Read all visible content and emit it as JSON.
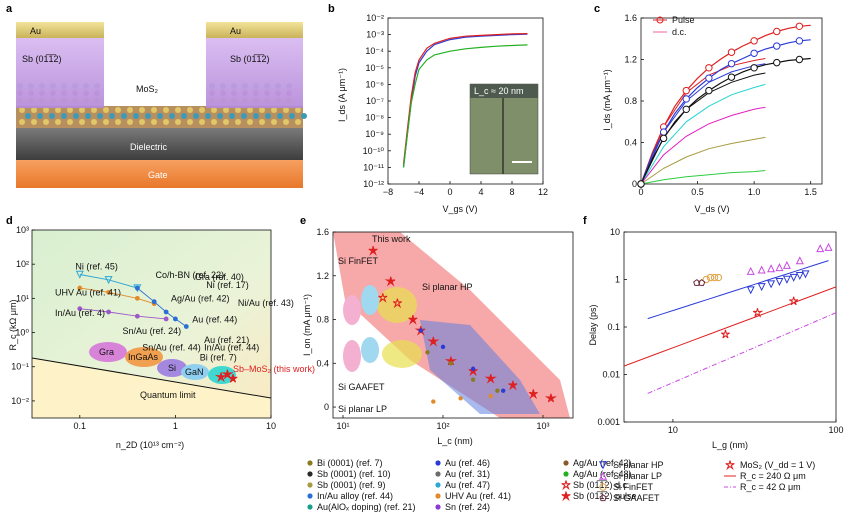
{
  "panel_letters": [
    "a",
    "b",
    "c",
    "d",
    "e",
    "f"
  ],
  "panel_a": {
    "labels": {
      "au_left": "Au",
      "au_right": "Au",
      "sb_left": "Sb (01̅1̅2)",
      "sb_right": "Sb (01̅1̅2)",
      "mos2": "MoS₂",
      "dielectric": "Dielectric",
      "gate": "Gate"
    },
    "colors": {
      "au": "#e7d37a",
      "sb": "#c9a6e6",
      "gate": "#f08a3c",
      "dielectric": "#5b5b5b"
    }
  },
  "chart_data": [
    {
      "id": "b",
      "type": "line",
      "xlabel": "V_gs (V)",
      "ylabel": "I_ds (A μm⁻¹)",
      "xlim": [
        -8,
        12
      ],
      "ylim_log10": [
        -12,
        -2
      ],
      "yscale": "log",
      "xticks": [
        "−8",
        "−4",
        "0",
        "4",
        "8",
        "12"
      ],
      "yticks": [
        "10⁻¹²",
        "10⁻¹¹",
        "10⁻¹⁰",
        "10⁻⁹",
        "10⁻⁸",
        "10⁻⁷",
        "10⁻⁶",
        "10⁻⁵",
        "10⁻⁴",
        "10⁻³",
        "10⁻²"
      ],
      "inset_label": "L_c ≈ 20 nm",
      "series": [
        {
          "color": "#2b3bd6",
          "x": [
            -6,
            -5.5,
            -5,
            -4.5,
            -4,
            -3,
            -2,
            0,
            2,
            4,
            6,
            8,
            10
          ],
          "y": [
            1e-11,
            1e-09,
            1e-07,
            3e-06,
            2e-05,
            0.0001,
            0.00025,
            0.0005,
            0.0007,
            0.0008,
            0.0009,
            0.001,
            0.00105
          ]
        },
        {
          "color": "#e02020",
          "x": [
            -6,
            -5.5,
            -5,
            -4.5,
            -4,
            -3,
            -2,
            0,
            2,
            4,
            6,
            8,
            10
          ],
          "y": [
            1.5e-11,
            2e-09,
            2e-07,
            5e-06,
            3e-05,
            0.00015,
            0.0003,
            0.0006,
            0.0008,
            0.0009,
            0.001,
            0.0011,
            0.00115
          ]
        },
        {
          "color": "#22b022",
          "x": [
            -6,
            -5.5,
            -5,
            -4.5,
            -4,
            -3,
            -2,
            0,
            2,
            4,
            6,
            8,
            10
          ],
          "y": [
            1e-11,
            1e-09,
            8e-08,
            1e-06,
            8e-06,
            3e-05,
            6e-05,
            0.0001,
            0.00014,
            0.00017,
            0.0002,
            0.00022,
            0.00024
          ]
        }
      ]
    },
    {
      "id": "c",
      "type": "line",
      "xlabel": "V_ds (V)",
      "ylabel": "I_ds (mA μm⁻¹)",
      "xlim": [
        0,
        1.6
      ],
      "ylim": [
        0,
        1.6
      ],
      "xticks": [
        "0",
        "0.5",
        "1.0",
        "1.5"
      ],
      "yticks": [
        "0",
        "0.4",
        "0.8",
        "1.2",
        "1.6"
      ],
      "legend": [
        {
          "name": "Pulse",
          "marker": "circle"
        },
        {
          "name": "d.c.",
          "marker": "line"
        }
      ],
      "legend_loc": "top-left",
      "pulse": [
        {
          "color": "#e02020",
          "x": [
            0,
            0.1,
            0.2,
            0.3,
            0.4,
            0.5,
            0.6,
            0.7,
            0.8,
            0.9,
            1.0,
            1.1,
            1.2,
            1.3,
            1.4,
            1.5
          ],
          "y": [
            0,
            0.3,
            0.55,
            0.75,
            0.9,
            1.02,
            1.12,
            1.2,
            1.27,
            1.33,
            1.38,
            1.43,
            1.47,
            1.5,
            1.52,
            1.53
          ]
        },
        {
          "color": "#2b3bd6",
          "x": [
            0,
            0.1,
            0.2,
            0.3,
            0.4,
            0.5,
            0.6,
            0.7,
            0.8,
            0.9,
            1.0,
            1.1,
            1.2,
            1.3,
            1.4,
            1.5
          ],
          "y": [
            0,
            0.28,
            0.5,
            0.68,
            0.82,
            0.93,
            1.02,
            1.1,
            1.16,
            1.21,
            1.26,
            1.3,
            1.33,
            1.36,
            1.38,
            1.39
          ]
        },
        {
          "color": "#111111",
          "x": [
            0,
            0.1,
            0.2,
            0.3,
            0.4,
            0.5,
            0.6,
            0.7,
            0.8,
            0.9,
            1.0,
            1.1,
            1.2,
            1.3,
            1.4,
            1.5
          ],
          "y": [
            0,
            0.24,
            0.44,
            0.6,
            0.72,
            0.82,
            0.9,
            0.97,
            1.03,
            1.08,
            1.12,
            1.15,
            1.17,
            1.19,
            1.2,
            1.21
          ]
        }
      ],
      "dc": [
        {
          "color": "#e02020",
          "x": [
            0,
            0.2,
            0.4,
            0.6,
            0.8,
            1.0,
            1.1
          ],
          "y": [
            0,
            0.55,
            0.88,
            1.05,
            1.14,
            1.19,
            1.21
          ]
        },
        {
          "color": "#2b3bd6",
          "x": [
            0,
            0.2,
            0.4,
            0.6,
            0.8,
            1.0,
            1.1
          ],
          "y": [
            0,
            0.5,
            0.8,
            0.98,
            1.08,
            1.14,
            1.16
          ]
        },
        {
          "color": "#111111",
          "x": [
            0,
            0.2,
            0.4,
            0.6,
            0.8,
            1.0,
            1.1
          ],
          "y": [
            0,
            0.45,
            0.72,
            0.88,
            0.98,
            1.05,
            1.07
          ]
        },
        {
          "color": "#22d4d4",
          "x": [
            0,
            0.2,
            0.4,
            0.6,
            0.8,
            1.0,
            1.1
          ],
          "y": [
            0,
            0.36,
            0.6,
            0.75,
            0.86,
            0.93,
            0.96
          ]
        },
        {
          "color": "#e020c0",
          "x": [
            0,
            0.2,
            0.4,
            0.6,
            0.8,
            1.0,
            1.1
          ],
          "y": [
            0,
            0.28,
            0.46,
            0.58,
            0.66,
            0.72,
            0.74
          ]
        },
        {
          "color": "#a89a40",
          "x": [
            0,
            0.2,
            0.4,
            0.6,
            0.8,
            1.0,
            1.1
          ],
          "y": [
            0,
            0.15,
            0.26,
            0.34,
            0.39,
            0.43,
            0.45
          ]
        },
        {
          "color": "#2ecc40",
          "x": [
            0,
            0.2,
            0.4,
            0.6,
            0.8,
            1.0,
            1.1
          ],
          "y": [
            0,
            0.04,
            0.07,
            0.09,
            0.11,
            0.12,
            0.13
          ]
        }
      ]
    },
    {
      "id": "d",
      "type": "scatter",
      "xlabel": "n_2D (10¹³ cm⁻²)",
      "ylabel": "R_c (kΩ μm)",
      "xscale": "log",
      "yscale": "log",
      "xlim_log10": [
        -1.5,
        1
      ],
      "ylim_log10": [
        -2.5,
        3
      ],
      "xticks": [
        "0.1",
        "1",
        "10"
      ],
      "yticks": [
        "10⁻²",
        "10⁻¹",
        "10⁰",
        "10¹",
        "10²",
        "10³"
      ],
      "quantum_limit_label": "Quantum limit",
      "ellipse_labels": [
        "Gra",
        "InGaAs",
        "Si",
        "GaN"
      ],
      "annotations": [
        {
          "text": "Ni (ref. 45)",
          "x": 0.09,
          "y": 70
        },
        {
          "text": "Co/h-BN (ref. 22)",
          "x": 0.62,
          "y": 40
        },
        {
          "text": "Gra (ref. 40)",
          "x": 1.6,
          "y": 35
        },
        {
          "text": "UHV Au (ref. 41)",
          "x": 0.055,
          "y": 12
        },
        {
          "text": "Ni (ref. 17)",
          "x": 2.1,
          "y": 20
        },
        {
          "text": "Ag/Au (ref. 42)",
          "x": 0.9,
          "y": 8
        },
        {
          "text": "Ni/Au (ref. 43)",
          "x": 4.5,
          "y": 6
        },
        {
          "text": "In/Au (ref. 4)",
          "x": 0.055,
          "y": 3
        },
        {
          "text": "Au (ref. 44)",
          "x": 1.5,
          "y": 2
        },
        {
          "text": "Sn/Au (ref. 24)",
          "x": 0.28,
          "y": 0.9
        },
        {
          "text": "Au (ref. 21)",
          "x": 2.0,
          "y": 0.5
        },
        {
          "text": "Sn/Au (ref. 44)",
          "x": 0.45,
          "y": 0.3
        },
        {
          "text": "In/Au (ref. 44)",
          "x": 2.0,
          "y": 0.3
        },
        {
          "text": "Bi (ref. 7)",
          "x": 1.8,
          "y": 0.15
        },
        {
          "text": "Sb–MoS₂ (this work)",
          "x": 4.0,
          "y": 0.07
        }
      ],
      "series": [
        {
          "name": "Ni (ref. 45)",
          "color": "#2aa7d6",
          "x": [
            0.1,
            0.2,
            0.4
          ],
          "y": [
            50,
            35,
            20
          ]
        },
        {
          "name": "UHV Au (ref. 41)",
          "color": "#e08a2a",
          "x": [
            0.1,
            0.2,
            0.4,
            0.6
          ],
          "y": [
            20,
            15,
            10,
            7
          ]
        },
        {
          "name": "In/Au (ref. 4)",
          "color": "#9c58c9",
          "x": [
            0.1,
            0.2,
            0.4,
            0.8
          ],
          "y": [
            5,
            4,
            3,
            2.5
          ]
        },
        {
          "name": "Au (ref. 44)",
          "color": "#2b6fd6",
          "x": [
            0.4,
            0.6,
            0.8,
            1.0,
            1.3
          ],
          "y": [
            20,
            8,
            4,
            2.5,
            1.5
          ]
        },
        {
          "name": "Sb (01̅1̅2)",
          "color": "#e02020",
          "x": [
            3.0,
            3.5,
            4.0
          ],
          "y": [
            0.05,
            0.06,
            0.045
          ]
        }
      ]
    },
    {
      "id": "e",
      "type": "scatter",
      "xlabel": "L_c (nm)",
      "ylabel": "I_on (mA μm⁻¹)",
      "xscale": "log",
      "xlim_log10": [
        0.9,
        3.3
      ],
      "ylim": [
        -0.1,
        1.6
      ],
      "xticks": [
        "10¹",
        "10²",
        "10³"
      ],
      "yticks": [
        "0",
        "0.4",
        "0.8",
        "1.2",
        "1.6"
      ],
      "annotations": [
        "This work",
        "Si FinFET",
        "Si planar HP",
        "Si GAAFET",
        "Si planar LP"
      ],
      "series": [
        {
          "name": "Sb (01̅1̅2) pulse",
          "color": "#e02020",
          "x": [
            20,
            30,
            50,
            80,
            120,
            200,
            300,
            500,
            800,
            1200
          ],
          "y": [
            1.43,
            1.15,
            0.8,
            0.6,
            0.42,
            0.33,
            0.26,
            0.2,
            0.12,
            0.08
          ]
        },
        {
          "name": "Sb (01̅1̅2) d.c.",
          "color": "#e02020",
          "x": [
            25,
            35,
            60
          ],
          "y": [
            1.0,
            0.95,
            0.7
          ]
        },
        {
          "name": "Bi (0001)",
          "color": "#8a7a20",
          "x": [
            70,
            120,
            200,
            350
          ],
          "y": [
            0.5,
            0.4,
            0.25,
            0.15
          ]
        },
        {
          "name": "Au",
          "color": "#2b3bd6",
          "x": [
            60,
            100,
            200,
            400
          ],
          "y": [
            0.7,
            0.55,
            0.35,
            0.15
          ]
        },
        {
          "name": "UHV Au",
          "color": "#e08a2a",
          "x": [
            80,
            150,
            300
          ],
          "y": [
            0.05,
            0.08,
            0.1
          ]
        }
      ]
    },
    {
      "id": "f",
      "type": "scatter",
      "xlabel": "L_g (nm)",
      "ylabel": "Delay (ps)",
      "xscale": "log",
      "yscale": "log",
      "xlim_log10": [
        0.7,
        2
      ],
      "ylim_log10": [
        -3,
        1
      ],
      "xticks": [
        "10",
        "100"
      ],
      "yticks": [
        "0.001",
        "0.01",
        "0.1",
        "1",
        "10"
      ],
      "series": [
        {
          "name": "Si planar HP",
          "color": "#2b3bd6",
          "marker": "triangle-down",
          "x": [
            30,
            35,
            40,
            45,
            50,
            55,
            60,
            65
          ],
          "y": [
            0.6,
            0.7,
            0.8,
            0.9,
            1.0,
            1.1,
            1.2,
            1.3
          ]
        },
        {
          "name": "Si planar LP",
          "color": "#c848e0",
          "marker": "triangle-up",
          "x": [
            30,
            35,
            40,
            45,
            50,
            60,
            80,
            90
          ],
          "y": [
            1.5,
            1.6,
            1.7,
            1.8,
            2.0,
            2.5,
            4.5,
            4.8
          ]
        },
        {
          "name": "Si FinFET",
          "color": "#e0a040",
          "marker": "circle",
          "x": [
            16,
            17,
            18,
            19
          ],
          "y": [
            1.0,
            1.1,
            1.1,
            1.1
          ]
        },
        {
          "name": "Si GAAFET",
          "color": "#6b2a3a",
          "marker": "pentagon",
          "x": [
            14,
            15
          ],
          "y": [
            0.85,
            0.85
          ]
        },
        {
          "name": "MoS₂ (V_dd = 1 V)",
          "color": "#e02020",
          "marker": "star",
          "x": [
            21,
            33,
            55
          ],
          "y": [
            0.07,
            0.2,
            0.35
          ]
        }
      ],
      "lines": [
        {
          "name": "R_c = 240 Ω μm",
          "color": "#e02020",
          "style": "solid",
          "x": [
            5,
            100
          ],
          "y": [
            0.015,
            0.7
          ]
        },
        {
          "name": "R_c = 42 Ω μm",
          "color": "#c848e0",
          "style": "dashdot",
          "x": [
            7,
            100
          ],
          "y": [
            0.004,
            0.2
          ]
        },
        {
          "name": "",
          "color": "#2b3bd6",
          "style": "solid",
          "x": [
            7,
            90
          ],
          "y": [
            0.15,
            2.5
          ]
        }
      ]
    }
  ],
  "legend_e": [
    {
      "name": "Bi (0001) (ref. 7)",
      "color": "#8a7a20"
    },
    {
      "name": "Sb (0001) (ref. 10)",
      "color": "#2a2a2a"
    },
    {
      "name": "Sb (0001) (ref. 9)",
      "color": "#a89a40"
    },
    {
      "name": "In/Au alloy (ref. 44)",
      "color": "#2b6fd6"
    },
    {
      "name": "Au(AlOₓ doping) (ref. 21)",
      "color": "#19a08a"
    },
    {
      "name": "Au (ref. 46)",
      "color": "#2b3bd6"
    },
    {
      "name": "Au (ref. 31)",
      "color": "#6b6b6b"
    },
    {
      "name": "Au (ref. 47)",
      "color": "#2aa7d6"
    },
    {
      "name": "UHV Au (ref. 41)",
      "color": "#e08a2a"
    },
    {
      "name": "Sn (ref. 24)",
      "color": "#8a3ad6"
    },
    {
      "name": "Ag/Au (ref. 42)",
      "color": "#8a5a2a"
    },
    {
      "name": "Ag/Au (ref. 48)",
      "color": "#22b022"
    },
    {
      "name": "Sb (01̅1̅2) d.c.",
      "color": "#e02020",
      "hollow": true
    },
    {
      "name": "Sb (01̅1̅2) pulse",
      "color": "#e02020",
      "hollow": false
    }
  ],
  "legend_f": [
    {
      "name": "Si planar HP"
    },
    {
      "name": "Si planar LP"
    },
    {
      "name": "Si FinFET"
    },
    {
      "name": "Si GAAFET"
    },
    {
      "name": "MoS₂ (V_dd = 1 V)"
    },
    {
      "name": "R_c = 240 Ω μm"
    },
    {
      "name": "R_c = 42 Ω μm"
    }
  ]
}
